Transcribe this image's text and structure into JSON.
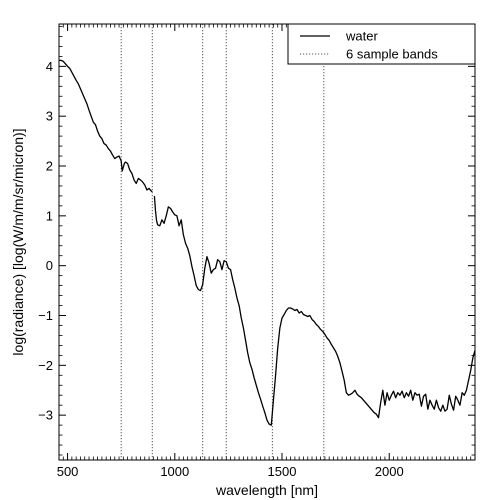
{
  "chart_data": {
    "type": "line",
    "title": "",
    "xlabel": "wavelength [nm]",
    "ylabel": "log(radiance) [log(W/m/m/sr/micron)]",
    "xlim": [
      460,
      2400
    ],
    "ylim": [
      -3.9,
      4.85
    ],
    "x_ticks": [
      500,
      1000,
      1500,
      2000
    ],
    "y_ticks": [
      -3,
      -2,
      -1,
      0,
      1,
      2,
      3,
      4
    ],
    "grid": false,
    "legend_position": "top-right",
    "series": [
      {
        "name": "water",
        "style": "solid",
        "color": "#000000",
        "x": [
          460,
          470,
          480,
          490,
          500,
          510,
          520,
          530,
          540,
          550,
          560,
          570,
          580,
          590,
          600,
          610,
          620,
          630,
          640,
          650,
          660,
          670,
          680,
          690,
          700,
          710,
          720,
          730,
          740,
          750,
          755,
          760,
          765,
          770,
          780,
          790,
          800,
          810,
          820,
          830,
          840,
          850,
          860,
          870,
          880,
          890,
          895
        ],
        "y": [
          4.12,
          4.12,
          4.1,
          4.05,
          4.0,
          3.96,
          3.88,
          3.8,
          3.72,
          3.65,
          3.55,
          3.45,
          3.35,
          3.25,
          3.12,
          3.0,
          2.88,
          2.83,
          2.7,
          2.6,
          2.55,
          2.45,
          2.42,
          2.35,
          2.3,
          2.22,
          2.15,
          2.18,
          2.2,
          2.1,
          1.9,
          1.98,
          2.05,
          2.08,
          2.05,
          1.92,
          1.85,
          1.72,
          1.65,
          1.75,
          1.72,
          1.68,
          1.62,
          1.52,
          1.55,
          1.5,
          1.48
        ]
      },
      {
        "name": "water",
        "style": "solid",
        "color": "#000000",
        "x": [
          905,
          910,
          915,
          920,
          930,
          940,
          950,
          960,
          970,
          980,
          990,
          1000,
          1010,
          1020,
          1030,
          1040,
          1050,
          1060,
          1070,
          1080,
          1090,
          1100,
          1110,
          1120,
          1130,
          1140,
          1150,
          1160,
          1170,
          1180,
          1190,
          1200,
          1210,
          1220,
          1230,
          1240,
          1250,
          1260,
          1270,
          1280,
          1290,
          1300,
          1310,
          1320,
          1330,
          1340,
          1350,
          1360,
          1370,
          1380,
          1390,
          1400,
          1410,
          1420,
          1430,
          1440,
          1450,
          1460,
          1470,
          1480,
          1490,
          1500,
          1510,
          1520,
          1530,
          1540,
          1550,
          1560,
          1570,
          1580,
          1590,
          1600,
          1610,
          1620,
          1630,
          1640,
          1650,
          1660,
          1670,
          1680,
          1690,
          1700,
          1710,
          1720,
          1730,
          1740,
          1750,
          1760,
          1770,
          1780,
          1790,
          1800,
          1810,
          1820,
          1830,
          1840,
          1850,
          1860,
          1870,
          1880,
          1890,
          1900,
          1910,
          1920,
          1930,
          1940,
          1950,
          1960,
          1970,
          1980,
          1990,
          2000,
          2010,
          2020,
          2030,
          2040,
          2050,
          2060,
          2070,
          2080,
          2090,
          2100,
          2110,
          2120,
          2130,
          2140,
          2150,
          2160,
          2170,
          2180,
          2190,
          2200,
          2210,
          2220,
          2230,
          2240,
          2250,
          2260,
          2270,
          2280,
          2290,
          2300,
          2310,
          2320,
          2330,
          2340,
          2350,
          2360,
          2370,
          2380,
          2390,
          2400
        ],
        "y": [
          1.4,
          1.1,
          0.9,
          0.82,
          0.8,
          0.92,
          0.85,
          1.0,
          1.18,
          1.15,
          1.08,
          1.02,
          1.0,
          0.8,
          0.92,
          0.62,
          0.45,
          0.35,
          0.2,
          -0.02,
          -0.2,
          -0.4,
          -0.48,
          -0.5,
          -0.38,
          -0.05,
          0.18,
          0.05,
          -0.15,
          -0.08,
          -0.05,
          0.12,
          0.08,
          -0.08,
          0.1,
          0.08,
          -0.05,
          -0.08,
          -0.28,
          -0.45,
          -0.65,
          -0.8,
          -1.05,
          -1.25,
          -1.5,
          -1.75,
          -1.95,
          -2.08,
          -2.25,
          -2.4,
          -2.55,
          -2.68,
          -2.82,
          -2.95,
          -3.1,
          -3.18,
          -3.2,
          -2.7,
          -2.2,
          -1.65,
          -1.25,
          -1.05,
          -0.98,
          -0.9,
          -0.85,
          -0.85,
          -0.87,
          -0.9,
          -0.88,
          -0.95,
          -0.92,
          -0.98,
          -1.0,
          -1.02,
          -1.0,
          -1.08,
          -1.12,
          -1.18,
          -1.22,
          -1.28,
          -1.32,
          -1.38,
          -1.45,
          -1.5,
          -1.58,
          -1.65,
          -1.72,
          -1.82,
          -1.95,
          -2.12,
          -2.3,
          -2.55,
          -2.6,
          -2.58,
          -2.55,
          -2.5,
          -2.58,
          -2.62,
          -2.65,
          -2.7,
          -2.75,
          -2.8,
          -2.85,
          -2.9,
          -2.95,
          -2.98,
          -3.05,
          -2.75,
          -2.5,
          -2.8,
          -2.55,
          -2.7,
          -2.6,
          -2.52,
          -2.65,
          -2.55,
          -2.6,
          -2.52,
          -2.65,
          -2.55,
          -2.62,
          -2.5,
          -2.7,
          -2.55,
          -2.6,
          -2.58,
          -2.82,
          -2.62,
          -2.58,
          -2.88,
          -2.7,
          -2.8,
          -2.88,
          -2.7,
          -2.85,
          -2.92,
          -2.8,
          -2.92,
          -2.88,
          -2.6,
          -2.78,
          -2.9,
          -2.62,
          -2.7,
          -2.8,
          -2.55,
          -2.6,
          -2.5,
          -2.3,
          -2.1,
          -1.85,
          -1.7
        ]
      }
    ],
    "bands": {
      "name": "6 sample bands",
      "style": "dotted",
      "color": "#555555",
      "x": [
        750,
        895,
        1130,
        1240,
        1455,
        1695
      ]
    }
  }
}
